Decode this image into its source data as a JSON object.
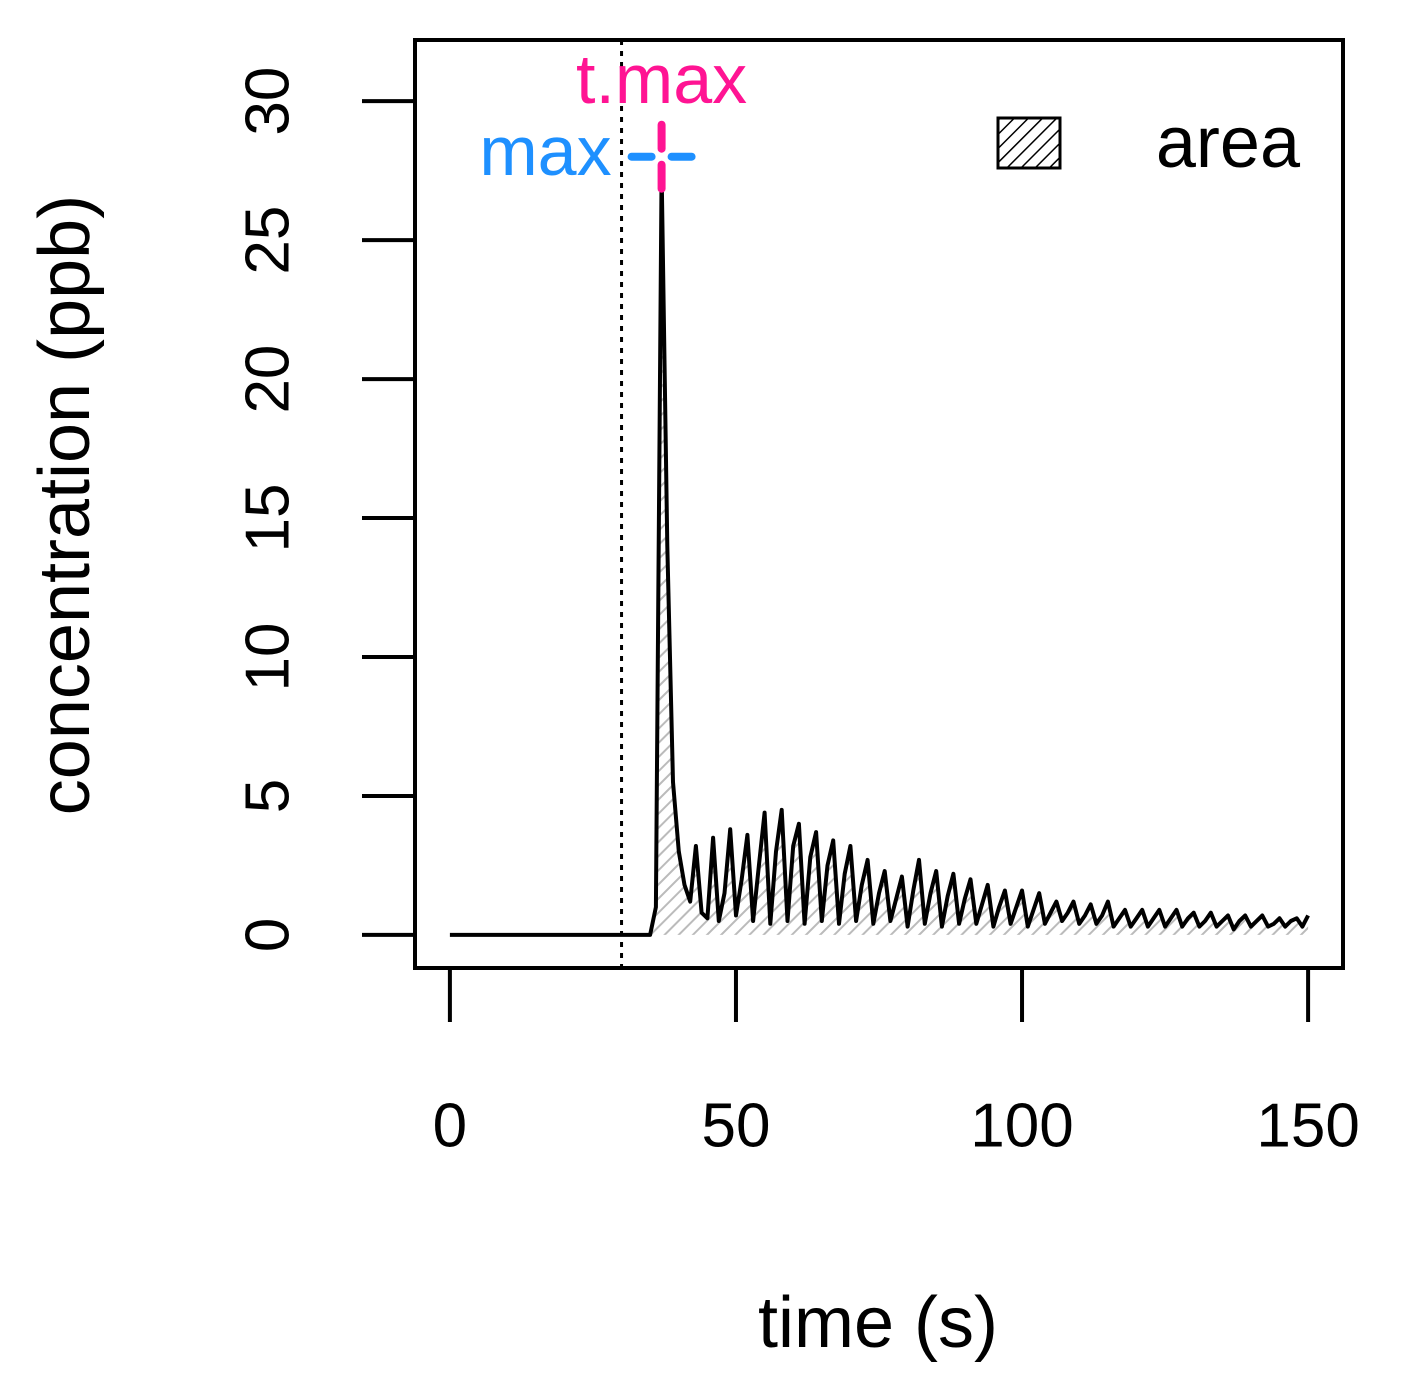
{
  "chart_data": {
    "type": "line",
    "x_label": "time (s)",
    "y_label": "concentration (ppb)",
    "x": [
      0,
      1,
      2,
      3,
      4,
      5,
      6,
      7,
      8,
      9,
      10,
      11,
      12,
      13,
      14,
      15,
      16,
      17,
      18,
      19,
      20,
      21,
      22,
      23,
      24,
      25,
      26,
      27,
      28,
      29,
      30,
      31,
      32,
      33,
      34,
      35,
      36,
      37,
      38,
      39,
      40,
      41,
      42,
      43,
      44,
      45,
      46,
      47,
      48,
      49,
      50,
      51,
      52,
      53,
      54,
      55,
      56,
      57,
      58,
      59,
      60,
      61,
      62,
      63,
      64,
      65,
      66,
      67,
      68,
      69,
      70,
      71,
      72,
      73,
      74,
      75,
      76,
      77,
      78,
      79,
      80,
      81,
      82,
      83,
      84,
      85,
      86,
      87,
      88,
      89,
      90,
      91,
      92,
      93,
      94,
      95,
      96,
      97,
      98,
      99,
      100,
      101,
      102,
      103,
      104,
      105,
      106,
      107,
      108,
      109,
      110,
      111,
      112,
      113,
      114,
      115,
      116,
      117,
      118,
      119,
      120,
      121,
      122,
      123,
      124,
      125,
      126,
      127,
      128,
      129,
      130,
      131,
      132,
      133,
      134,
      135,
      136,
      137,
      138,
      139,
      140,
      141,
      142,
      143,
      144,
      145,
      146,
      147,
      148,
      149,
      150
    ],
    "series": [
      {
        "name": "area",
        "color": "#000000",
        "fill_color": "#bbbbbb",
        "values": [
          0,
          0,
          0,
          0,
          0,
          0,
          0,
          0,
          0,
          0,
          0,
          0,
          0,
          0,
          0,
          0,
          0,
          0,
          0,
          0,
          0,
          0,
          0,
          0,
          0,
          0,
          0,
          0,
          0,
          0,
          0,
          0,
          0,
          0,
          0,
          0,
          1.0,
          27.5,
          14,
          5.5,
          3,
          1.8,
          1.2,
          3.2,
          0.8,
          0.6,
          3.5,
          0.5,
          1.5,
          3.8,
          0.7,
          2,
          3.6,
          0.5,
          2.5,
          4.4,
          0.4,
          3,
          4.5,
          0.5,
          3.2,
          4.0,
          0.4,
          2.8,
          3.7,
          0.5,
          2.5,
          3.4,
          0.4,
          2.2,
          3.2,
          0.5,
          1.8,
          2.7,
          0.4,
          1.5,
          2.3,
          0.5,
          1.3,
          2.1,
          0.3,
          1.6,
          2.7,
          0.4,
          1.5,
          2.3,
          0.3,
          1.4,
          2.2,
          0.4,
          1.3,
          2.0,
          0.4,
          1.1,
          1.8,
          0.3,
          1.0,
          1.6,
          0.4,
          1.0,
          1.6,
          0.3,
          0.9,
          1.5,
          0.4,
          0.8,
          1.2,
          0.5,
          0.8,
          1.2,
          0.4,
          0.7,
          1.1,
          0.4,
          0.7,
          1.2,
          0.3,
          0.6,
          0.9,
          0.3,
          0.6,
          0.9,
          0.3,
          0.6,
          0.9,
          0.3,
          0.6,
          0.9,
          0.3,
          0.6,
          0.8,
          0.3,
          0.5,
          0.8,
          0.3,
          0.5,
          0.7,
          0.2,
          0.5,
          0.7,
          0.3,
          0.5,
          0.7,
          0.3,
          0.4,
          0.6,
          0.3,
          0.5,
          0.6,
          0.3,
          0.7
        ]
      }
    ],
    "vline": 30,
    "peak": {
      "x": 37,
      "y": 28
    },
    "annotations": [
      {
        "text": "t.max",
        "color": "#ff1493"
      },
      {
        "text": "max",
        "color": "#1e90ff"
      }
    ],
    "xlim": [
      -6.1,
      156.1
    ],
    "ylim": [
      -1.19,
      32.2
    ],
    "xticks": [
      0,
      50,
      100,
      150
    ],
    "yticks": [
      0,
      5,
      10,
      15,
      20,
      25,
      30
    ],
    "legend": "topright",
    "grid": false
  }
}
